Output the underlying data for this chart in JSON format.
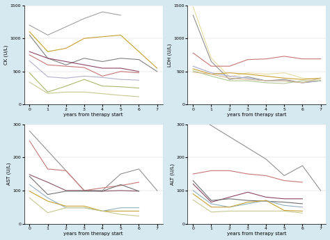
{
  "background": "#d6e8f0",
  "panel_bg": "#ffffff",
  "x_ticks": [
    0,
    1,
    2,
    3,
    4,
    5,
    6,
    7
  ],
  "xlabel": "years from therapy start",
  "ck": {
    "ylabel": "CK (U/L)",
    "ylim": [
      0,
      1500
    ],
    "yticks": [
      0,
      500,
      1000,
      1500
    ],
    "lines": [
      {
        "color": "#a0a0a0",
        "data": [
          1200,
          1050,
          null,
          1300,
          1400,
          1350,
          null,
          null
        ]
      },
      {
        "color": "#c8a030",
        "data": [
          1100,
          800,
          850,
          1000,
          null,
          1050,
          800,
          550
        ]
      },
      {
        "color": "#808080",
        "data": [
          1050,
          700,
          600,
          700,
          650,
          700,
          680,
          500
        ]
      },
      {
        "color": "#8b4565",
        "data": [
          800,
          700,
          650,
          600,
          550,
          550,
          500,
          null
        ]
      },
      {
        "color": "#c87575",
        "data": [
          750,
          600,
          580,
          560,
          430,
          500,
          480,
          null
        ]
      },
      {
        "color": "#b0b0cc",
        "data": [
          660,
          420,
          400,
          430,
          410,
          380,
          370,
          null
        ]
      },
      {
        "color": "#a8b870",
        "data": [
          480,
          190,
          280,
          380,
          280,
          270,
          250,
          null
        ]
      },
      {
        "color": "#c8c890",
        "data": [
          340,
          170,
          190,
          190,
          165,
          140,
          120,
          null
        ]
      }
    ]
  },
  "ldh": {
    "ylabel": "LDH (U/L)",
    "ylim": [
      0,
      1500
    ],
    "yticks": [
      0,
      500,
      1000,
      1500
    ],
    "lines": [
      {
        "color": "#e8dca0",
        "data": [
          1480,
          700,
          420,
          480,
          460,
          480,
          400,
          380
        ]
      },
      {
        "color": "#909090",
        "data": [
          1350,
          650,
          380,
          420,
          360,
          380,
          330,
          360
        ]
      },
      {
        "color": "#c87575",
        "data": [
          780,
          580,
          580,
          680,
          690,
          730,
          690,
          690
        ]
      },
      {
        "color": "#a8a8c8",
        "data": [
          580,
          480,
          430,
          400,
          360,
          360,
          330,
          360
        ]
      },
      {
        "color": "#c8a030",
        "data": [
          540,
          460,
          480,
          460,
          430,
          400,
          380,
          400
        ]
      },
      {
        "color": "#b0c890",
        "data": [
          510,
          430,
          360,
          360,
          330,
          320,
          360,
          360
        ]
      },
      {
        "color": "#d4b890",
        "data": [
          490,
          460,
          400,
          380,
          360,
          360,
          330,
          400
        ]
      }
    ]
  },
  "ast": {
    "ylabel": "AST (U/L)",
    "ylim": [
      0,
      300
    ],
    "yticks": [
      0,
      100,
      200,
      300
    ],
    "lines": [
      {
        "color": "#909090",
        "data": [
          280,
          null,
          160,
          100,
          100,
          150,
          165,
          100
        ]
      },
      {
        "color": "#c87575",
        "data": [
          250,
          165,
          160,
          100,
          108,
          115,
          125,
          null
        ]
      },
      {
        "color": "#8b5565",
        "data": [
          148,
          125,
          100,
          100,
          98,
          100,
          98,
          null
        ]
      },
      {
        "color": "#707070",
        "data": [
          143,
          88,
          98,
          98,
          98,
          118,
          98,
          null
        ]
      },
      {
        "color": "#90b0c0",
        "data": [
          118,
          78,
          48,
          48,
          38,
          48,
          48,
          null
        ]
      },
      {
        "color": "#c8a030",
        "data": [
          98,
          68,
          53,
          53,
          38,
          38,
          38,
          null
        ]
      },
      {
        "color": "#c8c890",
        "data": [
          78,
          33,
          48,
          48,
          38,
          28,
          23,
          null
        ]
      }
    ]
  },
  "alt": {
    "ylabel": "ALT (U/L)",
    "ylim": [
      0,
      300
    ],
    "yticks": [
      0,
      100,
      200,
      300
    ],
    "lines": [
      {
        "color": "#909090",
        "data": [
          330,
          null,
          null,
          null,
          195,
          145,
          175,
          100
        ]
      },
      {
        "color": "#c87575",
        "data": [
          150,
          160,
          160,
          150,
          145,
          130,
          125,
          null
        ]
      },
      {
        "color": "#8b4565",
        "data": [
          120,
          65,
          80,
          95,
          80,
          75,
          75,
          null
        ]
      },
      {
        "color": "#707070",
        "data": [
          130,
          70,
          75,
          70,
          68,
          65,
          60,
          null
        ]
      },
      {
        "color": "#90b0c0",
        "data": [
          100,
          60,
          50,
          60,
          70,
          55,
          50,
          null
        ]
      },
      {
        "color": "#c8a030",
        "data": [
          90,
          50,
          50,
          65,
          70,
          40,
          38,
          null
        ]
      },
      {
        "color": "#c8c890",
        "data": [
          72,
          35,
          38,
          38,
          38,
          38,
          32,
          null
        ]
      }
    ]
  }
}
